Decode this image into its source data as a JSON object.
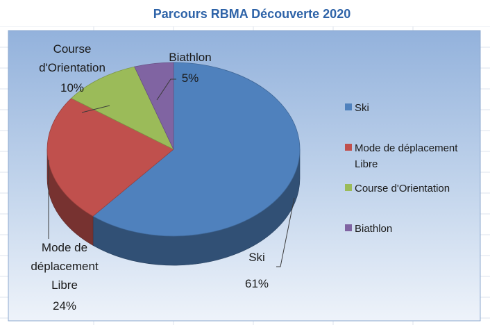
{
  "chart_data": {
    "type": "pie",
    "title": "Parcours RBMA  Découverte 2020",
    "three_d": true,
    "legend_position": "right",
    "slices": [
      {
        "name": "Ski",
        "value": 61,
        "percent_label": "61%",
        "color": "#4f81bd",
        "label_lines": [
          "Ski"
        ],
        "legend_lines": [
          "Ski"
        ]
      },
      {
        "name": "Mode de déplacement Libre",
        "value": 24,
        "percent_label": "24%",
        "color": "#c0504d",
        "label_lines": [
          "Mode de",
          "déplacement",
          "Libre"
        ],
        "legend_lines": [
          "Mode de déplacement",
          "Libre"
        ]
      },
      {
        "name": "Course d'Orientation",
        "value": 10,
        "percent_label": "10%",
        "color": "#9bbb59",
        "label_lines": [
          "Course",
          "d'Orientation"
        ],
        "legend_lines": [
          "Course d'Orientation"
        ]
      },
      {
        "name": "Biathlon",
        "value": 5,
        "percent_label": "5%",
        "color": "#8064a2",
        "label_lines": [
          "Biathlon"
        ],
        "legend_lines": [
          "Biathlon"
        ]
      }
    ]
  }
}
